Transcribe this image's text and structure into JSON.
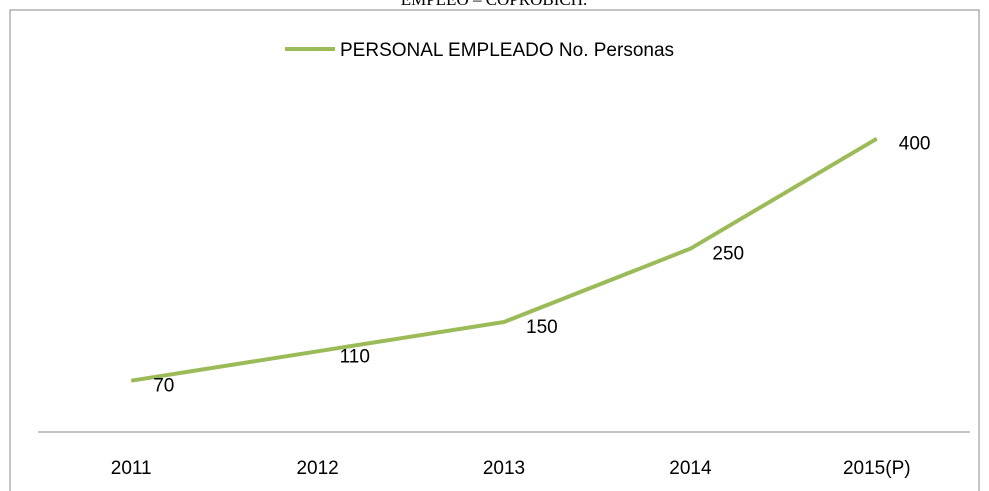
{
  "chart_data": {
    "type": "line",
    "title": "EMPLEO – COPROBICH.",
    "categories": [
      "2011",
      "2012",
      "2013",
      "2014",
      "2015(P)"
    ],
    "series": [
      {
        "name": "PERSONAL EMPLEADO No. Personas",
        "color": "#9bbb59",
        "values": [
          70,
          110,
          150,
          250,
          400
        ]
      }
    ],
    "ylim": [
      0,
      450
    ],
    "legend": "top"
  }
}
